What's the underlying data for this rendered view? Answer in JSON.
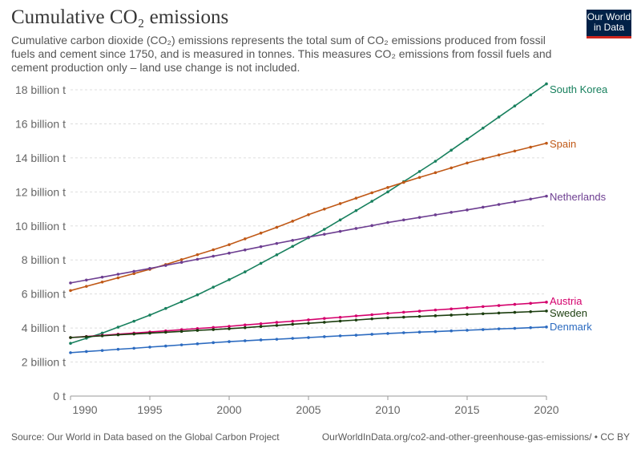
{
  "header": {
    "title": "Cumulative CO₂ emissions",
    "subtitle": "Cumulative carbon dioxide (CO₂) emissions represents the total sum of CO₂ emissions produced from fossil fuels and cement since 1750, and is measured in tonnes. This measures CO₂ emissions from fossil fuels and cement production only – land use change is not included.",
    "logo": "Our World in Data"
  },
  "footer": {
    "source": "Source: Our World in Data based on the Global Carbon Project",
    "url": "OurWorldInData.org/co2-and-other-greenhouse-gas-emissions/ • CC BY"
  },
  "chart_data": {
    "type": "line",
    "title": "Cumulative CO₂ emissions",
    "xlim": [
      1990,
      2020
    ],
    "ylim": [
      0,
      18
    ],
    "yticks": [
      0,
      2,
      4,
      6,
      8,
      10,
      12,
      14,
      16,
      18
    ],
    "ytick_labels": [
      "0 t",
      "2 billion t",
      "4 billion t",
      "6 billion t",
      "8 billion t",
      "10 billion t",
      "12 billion t",
      "14 billion t",
      "16 billion t",
      "18 billion t"
    ],
    "xticks": [
      1990,
      1995,
      2000,
      2005,
      2010,
      2015,
      2020
    ],
    "xtick_labels": [
      "1990",
      "1995",
      "2000",
      "2005",
      "2010",
      "2015",
      "2020"
    ],
    "grid": "horizontal dotted",
    "legend": "line-end labels",
    "unit": "billion t",
    "x_start": 1990,
    "series": [
      {
        "name": "South Korea",
        "color": "#18805e",
        "values": [
          3.1,
          3.4,
          3.7,
          4.05,
          4.4,
          4.76,
          5.15,
          5.55,
          5.95,
          6.4,
          6.84,
          7.3,
          7.8,
          8.3,
          8.8,
          9.3,
          9.8,
          10.35,
          10.9,
          11.45,
          12.0,
          12.6,
          13.2,
          13.8,
          14.45,
          15.1,
          15.75,
          16.4,
          17.05,
          17.7,
          18.35
        ]
      },
      {
        "name": "Spain",
        "color": "#c05917",
        "values": [
          6.2,
          6.45,
          6.7,
          6.95,
          7.2,
          7.45,
          7.73,
          8.02,
          8.31,
          8.6,
          8.9,
          9.24,
          9.58,
          9.92,
          10.28,
          10.66,
          10.99,
          11.31,
          11.63,
          11.95,
          12.26,
          12.56,
          12.85,
          13.13,
          13.41,
          13.7,
          13.94,
          14.17,
          14.4,
          14.63,
          14.86
        ]
      },
      {
        "name": "Netherlands",
        "color": "#6d3e91",
        "values": [
          6.65,
          6.82,
          6.99,
          7.16,
          7.33,
          7.5,
          7.68,
          7.86,
          8.04,
          8.22,
          8.4,
          8.59,
          8.78,
          8.97,
          9.15,
          9.34,
          9.51,
          9.68,
          9.85,
          10.02,
          10.2,
          10.35,
          10.5,
          10.65,
          10.8,
          10.94,
          11.1,
          11.26,
          11.42,
          11.58,
          11.75
        ]
      },
      {
        "name": "Austria",
        "color": "#d4006c",
        "values": [
          3.44,
          3.5,
          3.57,
          3.64,
          3.7,
          3.77,
          3.83,
          3.9,
          3.97,
          4.03,
          4.1,
          4.18,
          4.25,
          4.33,
          4.4,
          4.48,
          4.56,
          4.63,
          4.71,
          4.78,
          4.86,
          4.93,
          4.99,
          5.06,
          5.12,
          5.19,
          5.26,
          5.32,
          5.39,
          5.45,
          5.52
        ]
      },
      {
        "name": "Sweden",
        "color": "#1b3d0e",
        "values": [
          3.44,
          3.49,
          3.54,
          3.6,
          3.65,
          3.7,
          3.75,
          3.8,
          3.86,
          3.91,
          3.96,
          4.02,
          4.09,
          4.15,
          4.22,
          4.28,
          4.34,
          4.41,
          4.47,
          4.54,
          4.6,
          4.64,
          4.68,
          4.72,
          4.76,
          4.8,
          4.84,
          4.88,
          4.92,
          4.96,
          5.0
        ]
      },
      {
        "name": "Denmark",
        "color": "#2c6bc0",
        "values": [
          2.55,
          2.62,
          2.68,
          2.75,
          2.81,
          2.88,
          2.94,
          3.01,
          3.07,
          3.14,
          3.2,
          3.25,
          3.3,
          3.34,
          3.39,
          3.44,
          3.49,
          3.54,
          3.58,
          3.63,
          3.68,
          3.72,
          3.76,
          3.79,
          3.83,
          3.87,
          3.91,
          3.95,
          3.98,
          4.02,
          4.06
        ]
      }
    ]
  }
}
